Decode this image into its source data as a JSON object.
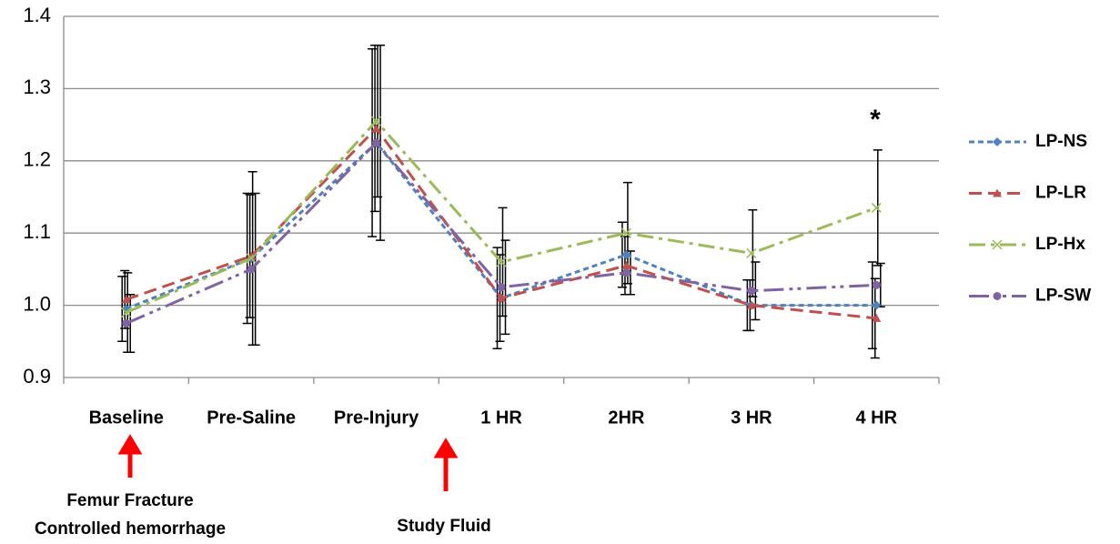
{
  "chart_data": {
    "type": "line",
    "categories": [
      "Baseline",
      "Pre-Saline",
      "Pre-Injury",
      "1 HR",
      "2HR",
      "3 HR",
      "4 HR"
    ],
    "series": [
      {
        "name": "LP-NS",
        "color": "#4f81bd",
        "values": [
          0.995,
          1.065,
          1.225,
          1.01,
          1.07,
          1.0,
          1.0
        ],
        "errors": [
          0.045,
          0.09,
          0.13,
          0.07,
          0.045,
          0.035,
          0.06
        ]
      },
      {
        "name": "LP-LR",
        "color": "#c0504d",
        "values": [
          1.008,
          1.068,
          1.245,
          1.01,
          1.055,
          1.0,
          0.982
        ],
        "errors": [
          0.04,
          0.085,
          0.115,
          0.06,
          0.04,
          0.035,
          0.055
        ]
      },
      {
        "name": "LP-Hx",
        "color": "#9bbb59",
        "values": [
          0.99,
          1.065,
          1.255,
          1.06,
          1.1,
          1.072,
          1.135
        ],
        "errors": [
          0.055,
          0.12,
          0.105,
          0.075,
          0.07,
          0.06,
          0.08
        ]
      },
      {
        "name": "LP-SW",
        "color": "#8064a2",
        "values": [
          0.975,
          1.05,
          1.225,
          1.025,
          1.045,
          1.02,
          1.028
        ],
        "errors": [
          0.04,
          0.105,
          0.135,
          0.065,
          0.03,
          0.04,
          0.03
        ]
      }
    ],
    "ylim": [
      0.9,
      1.4
    ],
    "yticks": [
      {
        "value": 0.9,
        "label": "0.9"
      },
      {
        "value": 1,
        "label": "1.0"
      },
      1.1,
      1.2,
      1.3,
      1.4
    ],
    "grid": true,
    "legend": "right",
    "annotations": [
      "*",
      "Femur Fracture",
      "Controlled hemorrhage",
      "Study Fluid"
    ]
  }
}
